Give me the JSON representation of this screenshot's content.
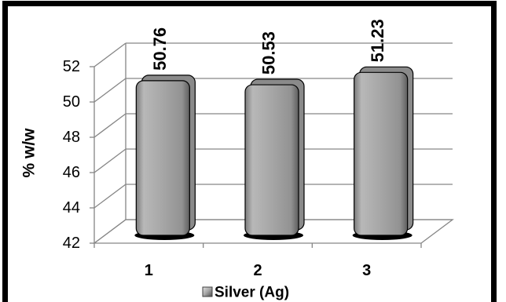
{
  "chart_data": {
    "type": "bar",
    "style": "3d",
    "categories": [
      "1",
      "2",
      "3"
    ],
    "series": [
      {
        "name": "Silver (Ag)",
        "values": [
          50.76,
          50.53,
          51.23
        ]
      }
    ],
    "ylabel": "% w/w",
    "ylim": [
      42,
      52
    ],
    "yticks": [
      42,
      44,
      46,
      48,
      50,
      52
    ],
    "data_labels": true,
    "grid": true,
    "legend": "bottom",
    "colors": {
      "bar": "#a6a6a6",
      "bar_edge": "#000000",
      "grid": "#868686",
      "frame": "#000000"
    }
  }
}
